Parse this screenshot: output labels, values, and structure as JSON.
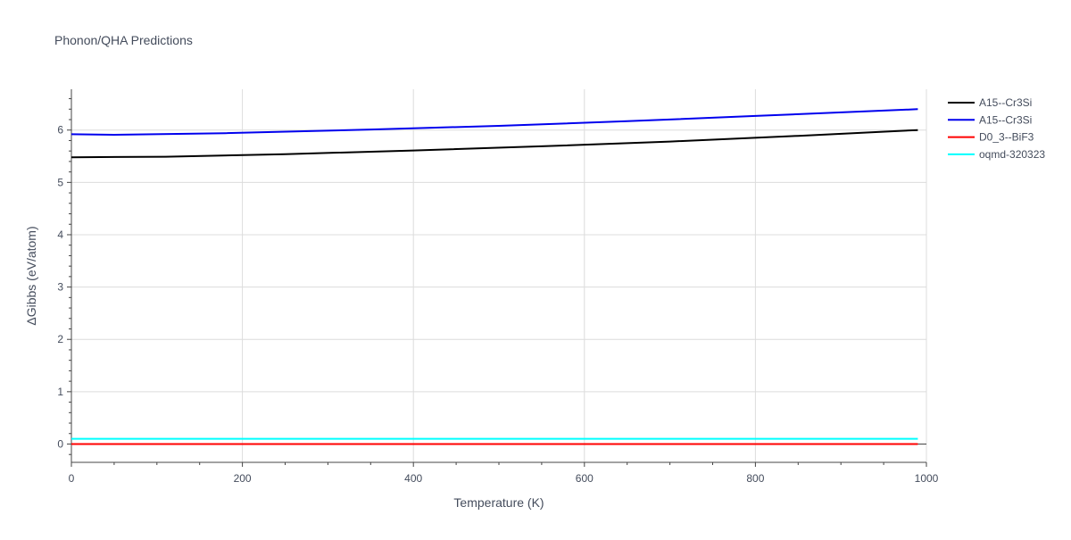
{
  "chart_data": {
    "type": "line",
    "title": "Phonon/QHA Predictions",
    "xlabel": "Temperature (K)",
    "ylabel": "ΔGibbs (eV/atom)",
    "xlim": [
      0,
      1000
    ],
    "ylim": [
      -0.35,
      6.78
    ],
    "x_ticks": [
      0,
      200,
      400,
      600,
      800,
      1000
    ],
    "y_ticks": [
      0,
      1,
      2,
      3,
      4,
      5,
      6
    ],
    "grid": true,
    "legend_position": "top-right",
    "series": [
      {
        "name": "A15--Cr3Si",
        "color": "#000000",
        "x": [
          0,
          110,
          250,
          400,
          550,
          700,
          850,
          990
        ],
        "y": [
          5.48,
          5.49,
          5.54,
          5.61,
          5.69,
          5.78,
          5.89,
          6.0
        ]
      },
      {
        "name": "A15--Cr3Si",
        "color": "#0000ee",
        "x": [
          0,
          50,
          180,
          350,
          500,
          650,
          800,
          990
        ],
        "y": [
          5.92,
          5.91,
          5.94,
          6.01,
          6.08,
          6.17,
          6.27,
          6.4
        ]
      },
      {
        "name": "D0_3--BiF3",
        "color": "#ff0000",
        "x": [
          0,
          990
        ],
        "y": [
          0.0,
          0.0
        ]
      },
      {
        "name": "oqmd-320323",
        "color": "#00ffff",
        "x": [
          0,
          990
        ],
        "y": [
          0.1,
          0.1
        ]
      }
    ]
  }
}
